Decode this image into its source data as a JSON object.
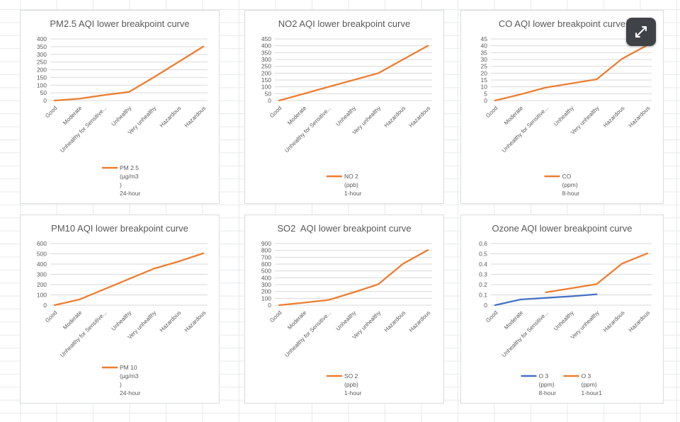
{
  "colors": {
    "accent_orange": "#ED7D31",
    "accent_blue": "#4472C4",
    "title_text": "#595959",
    "axis_text": "#595959",
    "chart_gridline": "#d9d9d9",
    "expand_button_bg": "#3f4347"
  },
  "icons": {
    "expand_button": "expand-arrows-diagonal-icon"
  },
  "categories": [
    "Good",
    "Moderate",
    "Unhealthy for Sensitive...",
    "Unhealthy",
    "Very unhealthy",
    "Hazardous",
    "Hazardous"
  ],
  "chart_data": [
    {
      "id": "pm25",
      "type": "line",
      "title": "PM2.5 AQI lower breakpoint curve",
      "ylim": [
        0,
        400
      ],
      "ytick_step": 50,
      "grid": true,
      "legend_position": "bottom",
      "series": [
        {
          "name": "PM 2.5 (µg/m3 ) 24-hour",
          "name_lines": [
            "PM 2.5",
            "(µg/m3",
            ")",
            "24-hour"
          ],
          "color": "#ED7D31",
          "start_index": 0,
          "values": [
            0,
            12.1,
            35.5,
            55.5,
            150.5,
            250.5,
            350.5
          ]
        }
      ]
    },
    {
      "id": "no2",
      "type": "line",
      "title": "NO2 AQI lower breakpoint curve",
      "ylim": [
        0,
        450
      ],
      "ytick_step": 50,
      "grid": true,
      "legend_position": "bottom",
      "series": [
        {
          "name": "NO 2 (ppb) 1-hour",
          "name_lines": [
            "NO 2",
            "(ppb)",
            "1-hour"
          ],
          "color": "#ED7D31",
          "start_index": 0,
          "values": [
            0,
            50,
            100,
            150,
            200,
            300,
            400
          ]
        }
      ]
    },
    {
      "id": "co",
      "type": "line",
      "title": "CO AQI lower breakpoint curve",
      "ylim": [
        0,
        45
      ],
      "ytick_step": 5,
      "grid": true,
      "legend_position": "bottom",
      "series": [
        {
          "name": "CO (ppm) 8-hour",
          "name_lines": [
            "CO",
            "(ppm)",
            "8-hour"
          ],
          "color": "#ED7D31",
          "start_index": 0,
          "values": [
            0,
            4.5,
            9.5,
            12.5,
            15.5,
            30.5,
            40.5
          ]
        }
      ]
    },
    {
      "id": "pm10",
      "type": "line",
      "title": "PM10 AQI lower breakpoint curve",
      "ylim": [
        0,
        600
      ],
      "ytick_step": 100,
      "grid": true,
      "legend_position": "bottom",
      "series": [
        {
          "name": "PM 10 (µg/m3 ) 24-hour",
          "name_lines": [
            "PM 10",
            "(µg/m3",
            ")",
            "24-hour"
          ],
          "color": "#ED7D31",
          "start_index": 0,
          "values": [
            0,
            55,
            155,
            255,
            355,
            425,
            505
          ]
        }
      ]
    },
    {
      "id": "so2",
      "type": "line",
      "title": "SO2  AQI lower breakpoint curve",
      "ylim": [
        0,
        900
      ],
      "ytick_step": 100,
      "grid": true,
      "legend_position": "bottom",
      "series": [
        {
          "name": "SO 2 (ppb) 1-hour",
          "name_lines": [
            "SO 2",
            "(ppb)",
            "1-hour"
          ],
          "color": "#ED7D31",
          "start_index": 0,
          "values": [
            0,
            36,
            76,
            186,
            305,
            605,
            805
          ]
        }
      ]
    },
    {
      "id": "ozone",
      "type": "line",
      "title": "Ozone AQI lower breakpoint curve",
      "ylim": [
        0,
        0.6
      ],
      "ytick_step": 0.1,
      "grid": true,
      "legend_position": "bottom",
      "series": [
        {
          "name": "O 3 (ppm) 8-hour",
          "name_lines": [
            "O 3",
            "(ppm)",
            "8-hour"
          ],
          "color": "#4472C4",
          "start_index": 0,
          "values": [
            0,
            0.055,
            0.071,
            0.086,
            0.106
          ]
        },
        {
          "name": "O 3 (ppm) 1-hour1",
          "name_lines": [
            "O 3",
            "(ppm)",
            "1-hour1"
          ],
          "color": "#ED7D31",
          "start_index": 2,
          "values": [
            0.125,
            0.165,
            0.205,
            0.405,
            0.505
          ]
        }
      ]
    }
  ]
}
